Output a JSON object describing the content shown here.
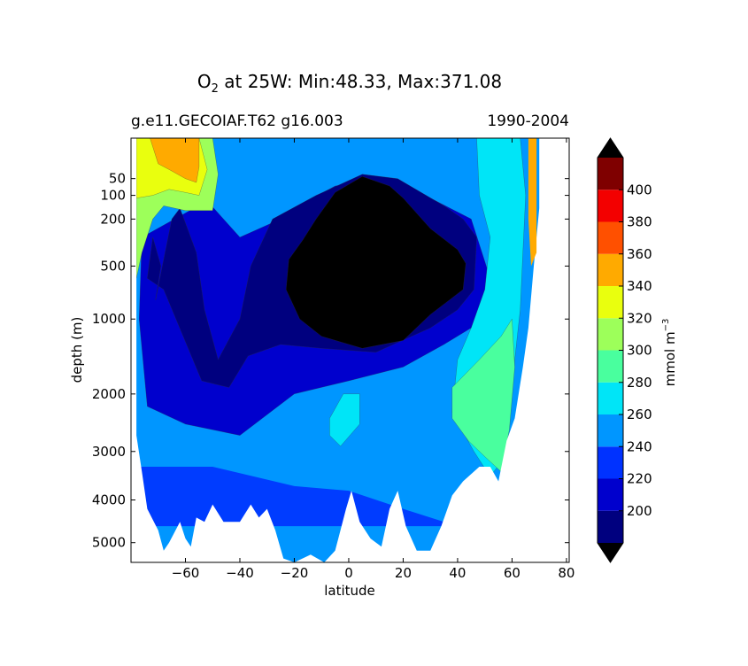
{
  "chart_data": {
    "type": "heatmap",
    "title": {
      "prefix": "O",
      "subscript": "2",
      "suffix": " at 25W: Min:48.33, Max:371.08"
    },
    "subtitle_left": "g.e11.GECOIAF.T62 g16.003",
    "subtitle_right": "1990-2004",
    "xlabel": "latitude",
    "ylabel": "depth (m)",
    "xlim": [
      -80,
      81
    ],
    "y_scale": "sqrt-depth",
    "ylim": [
      0,
      5500
    ],
    "x_ticks": [
      {
        "value": -60,
        "label": "−60"
      },
      {
        "value": -40,
        "label": "−40"
      },
      {
        "value": -20,
        "label": "−20"
      },
      {
        "value": 0,
        "label": "0"
      },
      {
        "value": 20,
        "label": "20"
      },
      {
        "value": 40,
        "label": "40"
      },
      {
        "value": 60,
        "label": "60"
      },
      {
        "value": 80,
        "label": "80"
      }
    ],
    "y_ticks": [
      {
        "value": 50,
        "label": "50"
      },
      {
        "value": 100,
        "label": "100"
      },
      {
        "value": 200,
        "label": "200"
      },
      {
        "value": 500,
        "label": "500"
      },
      {
        "value": 1000,
        "label": "1000"
      },
      {
        "value": 2000,
        "label": "2000"
      },
      {
        "value": 3000,
        "label": "3000"
      },
      {
        "value": 4000,
        "label": "4000"
      },
      {
        "value": 5000,
        "label": "5000"
      }
    ],
    "colorbar": {
      "label": "mmol m",
      "label_exponent": "−3",
      "levels": [
        180,
        200,
        220,
        240,
        260,
        280,
        300,
        320,
        340,
        360,
        380,
        400,
        420
      ],
      "colors": [
        "#00007f",
        "#0000cd",
        "#0032ff",
        "#0096ff",
        "#00e5f7",
        "#49ff9e",
        "#9dff5a",
        "#e9ff0e",
        "#ffaa00",
        "#ff5000",
        "#f30000",
        "#7f0000"
      ],
      "extend_low_color": "#000000",
      "extend_high_color": "#000000",
      "tick_labels": [
        "200",
        "220",
        "240",
        "260",
        "280",
        "300",
        "320",
        "340",
        "360",
        "380",
        "400"
      ]
    },
    "regions": [
      {
        "name": "band-220",
        "color": "#0000cd",
        "points": [
          [
            -52,
            120
          ],
          [
            -40,
            300
          ],
          [
            -25,
            200
          ],
          [
            -20,
            150
          ],
          [
            -5,
            70
          ],
          [
            10,
            55
          ],
          [
            30,
            110
          ],
          [
            45,
            200
          ],
          [
            52,
            600
          ],
          [
            50,
            900
          ],
          [
            45,
            1100
          ],
          [
            35,
            1300
          ],
          [
            20,
            1600
          ],
          [
            0,
            1800
          ],
          [
            -20,
            2000
          ],
          [
            -40,
            2700
          ],
          [
            -60,
            2500
          ],
          [
            -74,
            2200
          ],
          [
            -77,
            1000
          ],
          [
            -76,
            300
          ]
        ]
      },
      {
        "name": "band-200",
        "color": "#00007f",
        "points": [
          [
            -72,
            300
          ],
          [
            -69,
            500
          ],
          [
            -71,
            800
          ],
          [
            -65,
            200
          ],
          [
            -62,
            150
          ],
          [
            -56,
            400
          ],
          [
            -53,
            900
          ],
          [
            -48,
            1500
          ],
          [
            -40,
            1000
          ],
          [
            -36,
            500
          ],
          [
            -28,
            200
          ],
          [
            -12,
            100
          ],
          [
            5,
            40
          ],
          [
            18,
            50
          ],
          [
            35,
            140
          ],
          [
            42,
            200
          ],
          [
            47,
            300
          ],
          [
            46,
            700
          ],
          [
            40,
            900
          ],
          [
            30,
            1100
          ],
          [
            10,
            1400
          ],
          [
            -10,
            1350
          ],
          [
            -25,
            1300
          ],
          [
            -37,
            1450
          ],
          [
            -44,
            1900
          ],
          [
            -54,
            1800
          ],
          [
            -68,
            700
          ],
          [
            -74,
            600
          ]
        ]
      },
      {
        "name": "low-oxygen-core",
        "color": "#000000",
        "points": [
          [
            -12,
            200
          ],
          [
            -5,
            90
          ],
          [
            5,
            45
          ],
          [
            15,
            70
          ],
          [
            20,
            110
          ],
          [
            30,
            250
          ],
          [
            40,
            380
          ],
          [
            43,
            480
          ],
          [
            42,
            700
          ],
          [
            37,
            800
          ],
          [
            30,
            950
          ],
          [
            20,
            1250
          ],
          [
            5,
            1350
          ],
          [
            -10,
            1200
          ],
          [
            -18,
            1000
          ],
          [
            -23,
            700
          ],
          [
            -22,
            450
          ],
          [
            -17,
            320
          ]
        ]
      },
      {
        "name": "high-latitude-north",
        "color": "#00e5f7",
        "points": [
          [
            47,
            0
          ],
          [
            63,
            0
          ],
          [
            65,
            100
          ],
          [
            64,
            400
          ],
          [
            63,
            900
          ],
          [
            61,
            1500
          ],
          [
            58,
            2500
          ],
          [
            56,
            3200
          ],
          [
            52,
            3500
          ],
          [
            46,
            3000
          ],
          [
            38,
            2300
          ],
          [
            40,
            1500
          ],
          [
            45,
            1100
          ],
          [
            50,
            700
          ],
          [
            52,
            300
          ],
          [
            48,
            100
          ]
        ]
      },
      {
        "name": "north-atlantic-300",
        "color": "#49ff9e",
        "points": [
          [
            38,
            1900
          ],
          [
            48,
            1500
          ],
          [
            56,
            1200
          ],
          [
            60,
            1000
          ],
          [
            61,
            1600
          ],
          [
            59,
            2600
          ],
          [
            56,
            3400
          ],
          [
            50,
            3100
          ],
          [
            44,
            2800
          ],
          [
            38,
            2400
          ]
        ]
      },
      {
        "name": "small-patch-260",
        "color": "#00e5f7",
        "points": [
          [
            -7,
            2400
          ],
          [
            -2,
            2000
          ],
          [
            4,
            2000
          ],
          [
            4,
            2500
          ],
          [
            -3,
            2900
          ],
          [
            -7,
            2700
          ]
        ]
      },
      {
        "name": "near-surface-south-300",
        "color": "#9dff5a",
        "points": [
          [
            -78,
            0
          ],
          [
            -50,
            0
          ],
          [
            -48,
            40
          ],
          [
            -50,
            160
          ],
          [
            -60,
            160
          ],
          [
            -68,
            140
          ],
          [
            -72,
            200
          ],
          [
            -76,
            400
          ],
          [
            -78,
            600
          ]
        ]
      },
      {
        "name": "near-surface-south-320",
        "color": "#e9ff0e",
        "points": [
          [
            -78,
            0
          ],
          [
            -55,
            0
          ],
          [
            -52,
            30
          ],
          [
            -55,
            100
          ],
          [
            -60,
            90
          ],
          [
            -66,
            80
          ],
          [
            -72,
            100
          ],
          [
            -78,
            110
          ]
        ]
      },
      {
        "name": "near-surface-south-340",
        "color": "#ffaa00",
        "points": [
          [
            -73,
            0
          ],
          [
            -55,
            0
          ],
          [
            -55,
            25
          ],
          [
            -56,
            60
          ],
          [
            -60,
            50
          ],
          [
            -66,
            30
          ],
          [
            -70,
            20
          ]
        ]
      }
    ]
  }
}
